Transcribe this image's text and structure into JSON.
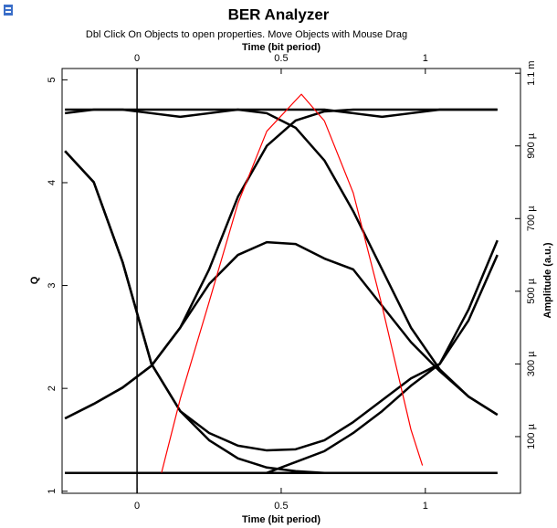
{
  "chart_data": {
    "type": "line",
    "title": "BER Analyzer",
    "subtitle": "Dbl Click On Objects to open properties.  Move Objects with Mouse Drag",
    "xlabel": "Time (bit period)",
    "x2label": "Time (bit period)",
    "ylabel": "Q",
    "y2label": "Amplitude (a.u.)",
    "xlim": [
      -0.26,
      1.33
    ],
    "xticks": [
      0,
      0.5,
      1
    ],
    "ylim": [
      0.98,
      5.11
    ],
    "yticks": [
      1,
      2,
      3,
      4,
      5
    ],
    "y2lim": [
      -5.6e-05,
      0.001113
    ],
    "y2ticks": [
      {
        "value": 0.0001,
        "label": "100 µ"
      },
      {
        "value": 0.0003,
        "label": "300 µ"
      },
      {
        "value": 0.0005,
        "label": "500 µ"
      },
      {
        "value": 0.0007,
        "label": "700 µ"
      },
      {
        "value": 0.0009,
        "label": "900 µ"
      },
      {
        "value": 0.0011,
        "label": "1.1 m"
      }
    ],
    "x": [
      -0.25,
      -0.15,
      -0.05,
      0.05,
      0.15,
      0.25,
      0.35,
      0.45,
      0.55,
      0.65,
      0.75,
      0.85,
      0.95,
      1.05,
      1.15,
      1.25
    ],
    "series": [
      {
        "color": "#000000",
        "axis": "y2",
        "values": [
          0.00099,
          0.001,
          0.001,
          0.00099,
          0.00098,
          0.00099,
          0.001,
          0.001,
          0.001,
          0.001,
          0.00099,
          0.00098,
          0.00099,
          0.001,
          0.001,
          0.001
        ]
      },
      {
        "color": "#000000",
        "axis": "y2",
        "values": [
          0,
          0,
          0,
          0,
          0,
          0,
          0,
          0,
          0,
          0,
          0,
          0,
          0,
          0,
          0,
          0
        ]
      },
      {
        "color": "#000000",
        "axis": "y2",
        "values": [
          0.00015,
          0.00019,
          0.000235,
          0.000295,
          0.0004,
          0.00056,
          0.00076,
          0.0009,
          0.00097,
          0.000995,
          0.001,
          0.001,
          0.001,
          0.001,
          0.001,
          0.001
        ]
      },
      {
        "color": "#000000",
        "axis": "y2",
        "values": [
          0.000886,
          0.0008,
          0.00058,
          0.0003,
          0.00017,
          9e-05,
          4e-05,
          1.5e-05,
          5e-06,
          0,
          0,
          0,
          0,
          0,
          0,
          0
        ]
      },
      {
        "color": "#000000",
        "axis": "y2",
        "values": [
          0.00015,
          0.00019,
          0.000235,
          0.000295,
          0.0004,
          0.00052,
          0.0006,
          0.000635,
          0.00063,
          0.00059,
          0.00056,
          0.00046,
          0.00036,
          0.00028,
          0.00021,
          0.00016
        ]
      },
      {
        "color": "#000000",
        "axis": "y2",
        "values": [
          0.000886,
          0.0008,
          0.00058,
          0.0003,
          0.00017,
          0.00011,
          7.5e-05,
          6.2e-05,
          6.5e-05,
          9e-05,
          0.00014,
          0.0002,
          0.00026,
          0.0003,
          0.00045,
          0.00064
        ]
      },
      {
        "color": "#000000",
        "axis": "y2",
        "values": [
          0.001,
          0.001,
          0.001,
          0.001,
          0.001,
          0.001,
          0.001,
          0.00099,
          0.00095,
          0.00086,
          0.00072,
          0.00056,
          0.0004,
          0.000285,
          0.00021,
          0.00016
        ]
      },
      {
        "color": "#000000",
        "axis": "y2",
        "values": [
          0,
          0,
          0,
          0,
          0,
          0,
          0,
          0,
          3e-05,
          6e-05,
          0.00011,
          0.00017,
          0.00024,
          0.0003,
          0.00042,
          0.0006
        ]
      },
      {
        "color": "#ff0000",
        "x": [
          0.085,
          0.15,
          0.25,
          0.35,
          0.45,
          0.57,
          0.65,
          0.75,
          0.85,
          0.95,
          0.99
        ],
        "values": [
          1.18,
          1.9,
          2.84,
          3.8,
          4.5,
          4.86,
          4.6,
          3.9,
          2.8,
          1.6,
          1.25
        ]
      }
    ]
  }
}
